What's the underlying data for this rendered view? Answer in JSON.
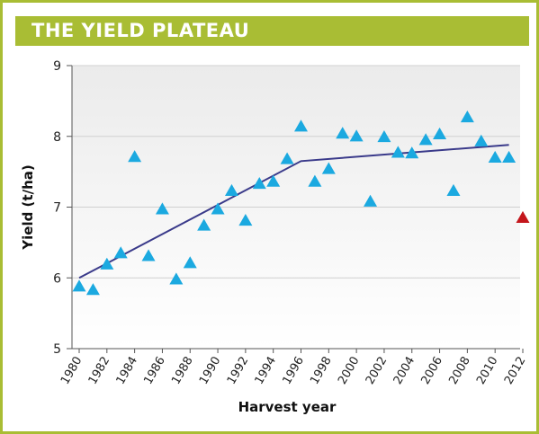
{
  "header": {
    "title": "THE YIELD PLATEAU"
  },
  "colors": {
    "border": "#a9bd34",
    "plot_bg_top": "#ebebeb",
    "plot_bg_bottom": "#ffffff",
    "marker": "#1ba9e0",
    "highlight_marker": "#c4161c",
    "trend_line": "#3a3a8a"
  },
  "chart_data": {
    "type": "scatter",
    "xlabel": "Harvest year",
    "ylabel": "Yield (t/ha)",
    "xlim": [
      1980,
      2012
    ],
    "ylim": [
      5,
      9
    ],
    "x_ticks": [
      "1980",
      "1982",
      "1984",
      "1986",
      "1988",
      "1990",
      "1992",
      "1994",
      "1996",
      "1998",
      "2000",
      "2002",
      "2004",
      "2006",
      "2008",
      "2010",
      "2012"
    ],
    "y_ticks": [
      "5",
      "6",
      "7",
      "8",
      "9"
    ],
    "grid": "horizontal",
    "marker": "triangle",
    "series": [
      {
        "points": [
          [
            1980,
            5.88
          ],
          [
            1981,
            5.83
          ],
          [
            1982,
            6.19
          ],
          [
            1983,
            6.35
          ],
          [
            1984,
            7.71
          ],
          [
            1985,
            6.31
          ],
          [
            1986,
            6.97
          ],
          [
            1987,
            5.98
          ],
          [
            1988,
            6.21
          ],
          [
            1989,
            6.74
          ],
          [
            1990,
            6.97
          ],
          [
            1991,
            7.23
          ],
          [
            1992,
            6.81
          ],
          [
            1993,
            7.33
          ],
          [
            1994,
            7.36
          ],
          [
            1995,
            7.68
          ],
          [
            1996,
            8.14
          ],
          [
            1997,
            7.36
          ],
          [
            1998,
            7.54
          ],
          [
            1999,
            8.04
          ],
          [
            2000,
            8.0
          ],
          [
            2001,
            7.08
          ],
          [
            2002,
            7.99
          ],
          [
            2003,
            7.77
          ],
          [
            2004,
            7.76
          ],
          [
            2005,
            7.95
          ],
          [
            2006,
            8.03
          ],
          [
            2007,
            7.23
          ],
          [
            2008,
            8.27
          ],
          [
            2009,
            7.93
          ],
          [
            2010,
            7.7
          ],
          [
            2011,
            7.7
          ]
        ]
      },
      {
        "points": [
          [
            2012,
            6.85
          ]
        ]
      }
    ],
    "trend": [
      [
        1980,
        6.0
      ],
      [
        1996,
        7.65
      ],
      [
        2011,
        7.88
      ]
    ]
  }
}
